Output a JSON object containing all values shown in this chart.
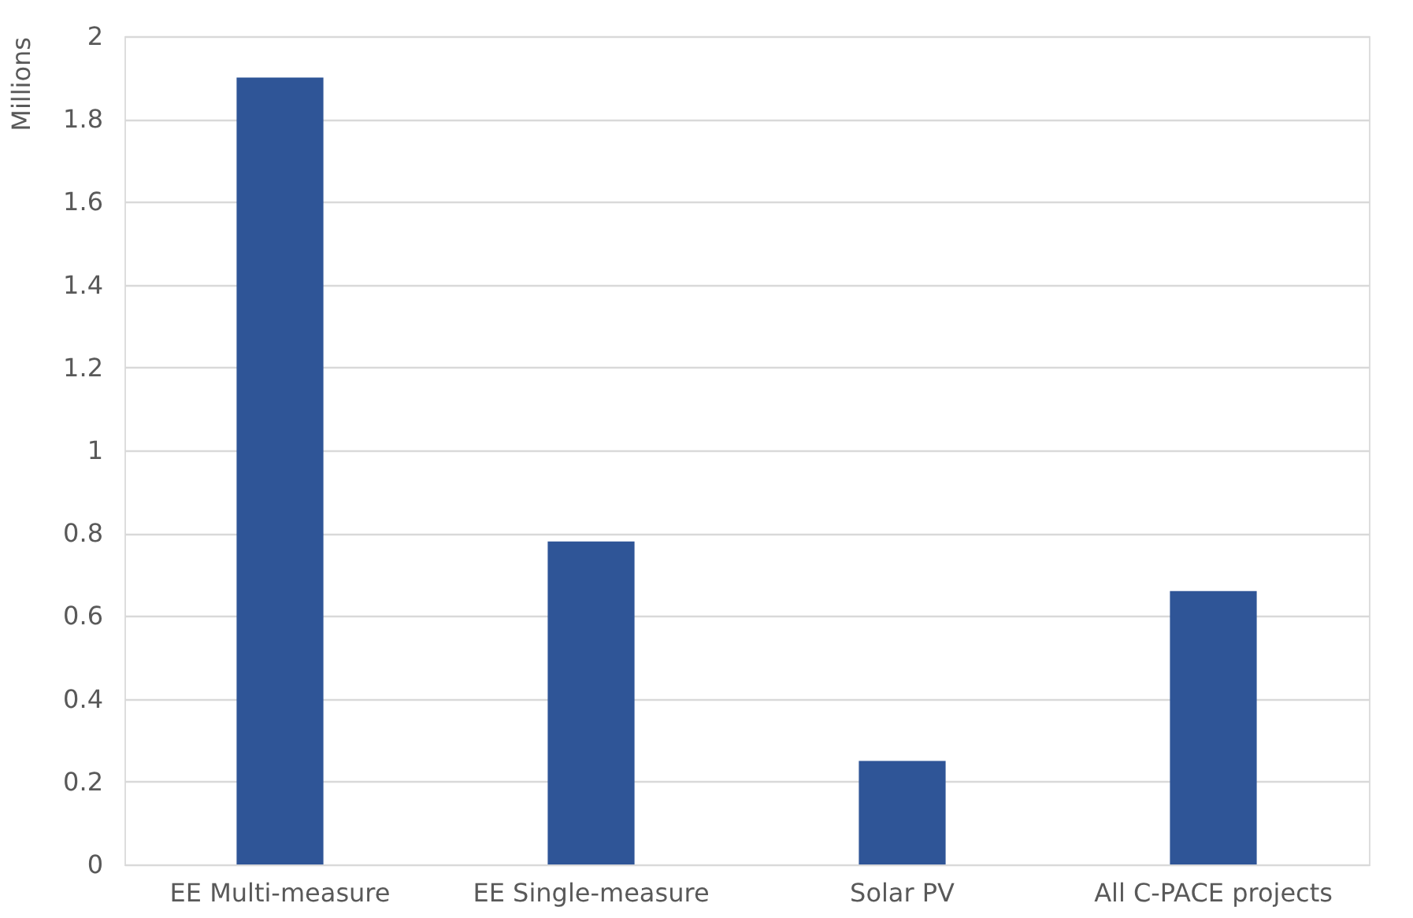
{
  "chart_data": {
    "type": "bar",
    "ylabel": "Millions",
    "categories": [
      "EE Multi-measure",
      "EE Single-measure",
      "Solar PV",
      "All C-PACE projects"
    ],
    "values": [
      1.9,
      0.78,
      0.25,
      0.66
    ],
    "color": "#2f5597",
    "ylim": [
      0,
      2
    ],
    "yticks": [
      0,
      0.2,
      0.4,
      0.6,
      0.8,
      1,
      1.2,
      1.4,
      1.6,
      1.8,
      2
    ],
    "grid": "y"
  }
}
